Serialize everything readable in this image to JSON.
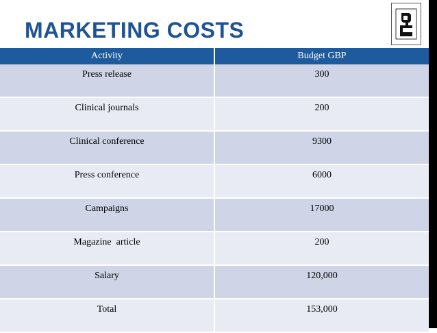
{
  "slide": {
    "title": "MARKETING COSTS",
    "accent_color": "#1e5496",
    "header_color": "#1e5a9e"
  },
  "logo": {
    "icon": "company-logo-icon"
  },
  "table": {
    "headers": [
      "Activity",
      "Budget GBP"
    ],
    "rows": [
      [
        "Press release",
        "300"
      ],
      [
        "Clinical journals",
        "200"
      ],
      [
        "Clinical conference",
        "9300"
      ],
      [
        "Press conference",
        "6000"
      ],
      [
        "Campaigns",
        "17000"
      ],
      [
        "Magazine  article",
        "200"
      ],
      [
        "Salary",
        "120,000"
      ],
      [
        "Total",
        "153,000"
      ]
    ]
  }
}
